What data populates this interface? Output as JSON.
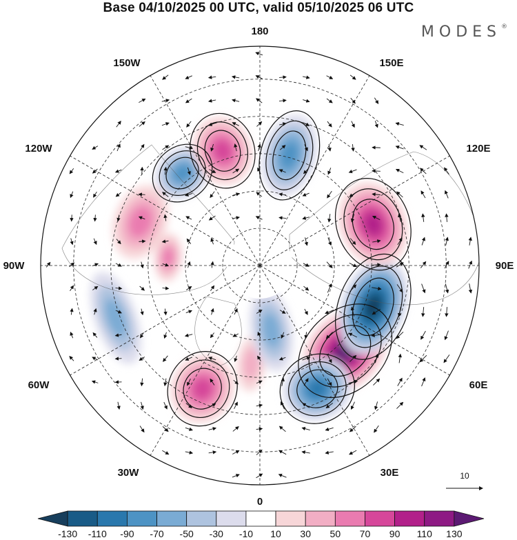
{
  "title": "Base 04/10/2025 00 UTC, valid 05/10/2025 06 UTC",
  "brand": "MODES",
  "brand_mark": "®",
  "longitude_labels": {
    "top": "180",
    "bottom": "0",
    "left": "90W",
    "right": "90E",
    "upper_left_1": "150W",
    "upper_left_2": "120W",
    "upper_right_1": "150E",
    "upper_right_2": "120E",
    "lower_left_1": "60W",
    "lower_left_2": "30W",
    "lower_right_1": "60E",
    "lower_right_2": "30E"
  },
  "vector_reference": {
    "label": "10"
  },
  "colorbar": {
    "ticks": [
      "-130",
      "-110",
      "-90",
      "-70",
      "-50",
      "-30",
      "-10",
      "10",
      "30",
      "50",
      "70",
      "90",
      "110",
      "130"
    ],
    "colors": [
      "#173e5c",
      "#195b87",
      "#2a78ad",
      "#4d93c4",
      "#7aabd4",
      "#aec3df",
      "#dcdcec",
      "#ffffff",
      "#f7d6d8",
      "#f2aec4",
      "#ea7bb0",
      "#d6479a",
      "#b2208a",
      "#8e1a84",
      "#5c1a73"
    ]
  },
  "anomaly_cells": [
    {
      "lon": 45,
      "dist": 0.55,
      "value": 120,
      "rx": 70,
      "ry": 52
    },
    {
      "lon": 70,
      "dist": 0.55,
      "value": -135,
      "rx": 72,
      "ry": 46
    },
    {
      "lon": 110,
      "dist": 0.55,
      "value": 95,
      "rx": 62,
      "ry": 48
    },
    {
      "lon": 25,
      "dist": 0.62,
      "value": -95,
      "rx": 50,
      "ry": 45
    },
    {
      "lon": -25,
      "dist": 0.62,
      "value": 75,
      "rx": 45,
      "ry": 50
    },
    {
      "lon": -5,
      "dist": 0.45,
      "value": 35,
      "rx": 20,
      "ry": 40
    },
    {
      "lon": -110,
      "dist": 0.58,
      "value": 45,
      "rx": 55,
      "ry": 38
    },
    {
      "lon": -140,
      "dist": 0.55,
      "value": -75,
      "rx": 42,
      "ry": 35
    },
    {
      "lon": -162,
      "dist": 0.55,
      "value": 70,
      "rx": 42,
      "ry": 50
    },
    {
      "lon": 165,
      "dist": 0.52,
      "value": -60,
      "rx": 38,
      "ry": 60
    },
    {
      "lon": -95,
      "dist": 0.42,
      "value": 40,
      "rx": 35,
      "ry": 20
    },
    {
      "lon": -70,
      "dist": 0.7,
      "value": -40,
      "rx": 70,
      "ry": 30
    },
    {
      "lon": 10,
      "dist": 0.3,
      "value": -45,
      "rx": 30,
      "ry": 60
    }
  ]
}
